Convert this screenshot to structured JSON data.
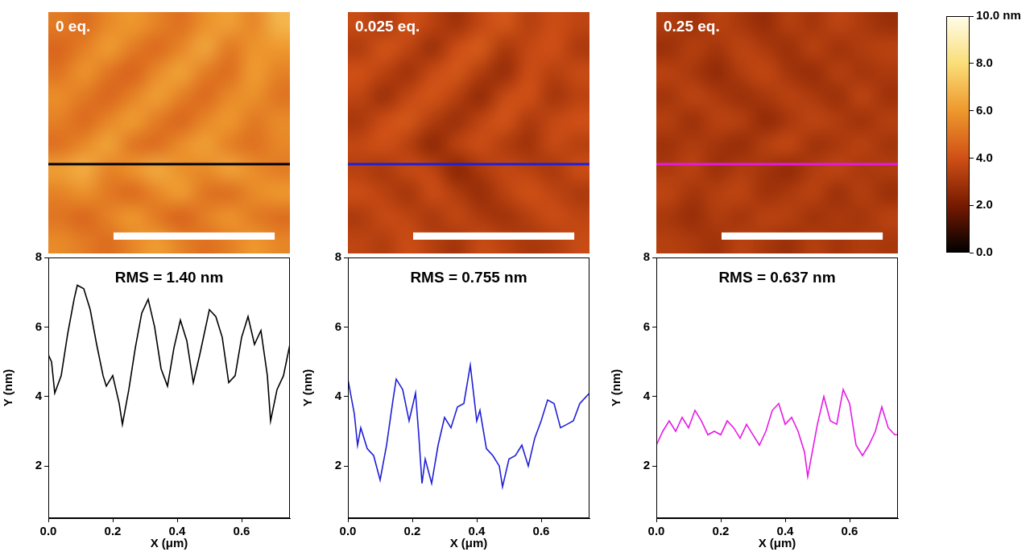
{
  "chart_data": [
    {
      "type": "heatmap",
      "title": "0 eq.",
      "color": "#000000",
      "tick_labels": false,
      "cells": [
        [
          5.2,
          4.8,
          5.6,
          6.0,
          5.4,
          4.9,
          5.8,
          6.2,
          5.5,
          6.8
        ],
        [
          4.6,
          5.3,
          6.1,
          5.2,
          4.7,
          5.5,
          6.4,
          5.1,
          5.9,
          6.0
        ],
        [
          5.0,
          5.9,
          5.0,
          4.5,
          5.6,
          6.3,
          5.2,
          4.8,
          6.1,
          5.4
        ],
        [
          5.7,
          5.1,
          4.6,
          5.4,
          6.2,
          5.3,
          4.7,
          5.6,
          5.8,
          5.0
        ],
        [
          5.3,
          4.7,
          5.5,
          6.1,
          5.2,
          4.6,
          5.5,
          6.0,
          5.1,
          5.6
        ],
        [
          4.9,
          5.6,
          6.3,
          5.0,
          4.8,
          5.7,
          6.2,
          5.3,
          4.9,
          5.5
        ],
        [
          6.2,
          6.6,
          5.4,
          5.9,
          6.5,
          5.8,
          5.6,
          6.3,
          5.7,
          5.2
        ],
        [
          5.4,
          5.8,
          5.1,
          4.7,
          5.5,
          6.1,
          5.0,
          4.8,
          5.6,
          6.0
        ],
        [
          5.0,
          4.6,
          5.4,
          6.0,
          5.1,
          4.5,
          5.3,
          5.9,
          5.2,
          4.8
        ],
        [
          5.6,
          5.2,
          4.8,
          5.5,
          6.1,
          5.4,
          4.9,
          5.3,
          6.0,
          5.5
        ]
      ]
    },
    {
      "type": "heatmap",
      "title": "0.025 eq.",
      "color": "#1f1fd6",
      "tick_labels": false,
      "cells": [
        [
          3.8,
          3.2,
          4.0,
          3.5,
          2.9,
          3.7,
          4.2,
          3.4,
          3.9,
          3.6
        ],
        [
          3.3,
          4.1,
          3.6,
          2.8,
          3.9,
          4.3,
          3.1,
          3.7,
          4.0,
          3.2
        ],
        [
          4.0,
          3.5,
          2.9,
          3.8,
          4.2,
          3.3,
          2.7,
          3.9,
          3.4,
          3.8
        ],
        [
          3.6,
          2.8,
          3.7,
          4.1,
          3.4,
          2.6,
          3.8,
          4.0,
          3.0,
          3.5
        ],
        [
          3.1,
          3.9,
          4.2,
          3.3,
          2.8,
          3.6,
          4.1,
          3.2,
          3.7,
          4.0
        ],
        [
          3.7,
          4.0,
          3.4,
          2.5,
          3.5,
          3.9,
          3.3,
          2.9,
          3.8,
          3.4
        ],
        [
          3.4,
          3.1,
          3.8,
          3.6,
          2.4,
          3.2,
          3.7,
          3.5,
          3.1,
          3.9
        ],
        [
          3.9,
          3.5,
          3.0,
          3.9,
          3.3,
          2.7,
          3.5,
          4.0,
          3.6,
          3.2
        ],
        [
          3.2,
          3.8,
          3.6,
          3.1,
          3.7,
          3.2,
          2.9,
          3.4,
          3.9,
          3.6
        ],
        [
          3.6,
          3.3,
          3.9,
          3.4,
          3.0,
          3.8,
          3.5,
          3.1,
          3.3,
          3.8
        ]
      ]
    },
    {
      "type": "heatmap",
      "title": "0.25 eq.",
      "color": "#e619e6",
      "tick_labels": false,
      "cells": [
        [
          3.3,
          2.9,
          3.5,
          3.1,
          2.7,
          3.4,
          3.0,
          3.6,
          3.2,
          2.8
        ],
        [
          2.8,
          3.4,
          3.0,
          3.6,
          3.2,
          2.8,
          3.5,
          2.9,
          3.3,
          3.5
        ],
        [
          3.5,
          3.1,
          2.6,
          3.3,
          3.7,
          3.0,
          2.7,
          3.4,
          3.0,
          3.2
        ],
        [
          3.0,
          3.6,
          3.2,
          2.8,
          3.1,
          3.5,
          3.2,
          2.8,
          3.6,
          2.9
        ],
        [
          3.4,
          2.8,
          3.5,
          3.4,
          2.6,
          3.1,
          3.6,
          3.3,
          2.9,
          3.4
        ],
        [
          2.9,
          3.3,
          3.0,
          2.7,
          3.4,
          3.7,
          2.9,
          3.1,
          3.5,
          3.0
        ],
        [
          3.2,
          3.5,
          2.8,
          3.3,
          3.0,
          2.6,
          3.3,
          3.6,
          3.1,
          3.3
        ],
        [
          3.6,
          3.0,
          3.4,
          3.6,
          2.9,
          3.2,
          3.5,
          2.8,
          3.4,
          2.8
        ],
        [
          3.1,
          2.7,
          3.3,
          3.0,
          3.5,
          3.4,
          2.9,
          3.2,
          3.0,
          3.5
        ],
        [
          3.4,
          3.2,
          2.9,
          3.5,
          3.1,
          2.8,
          3.4,
          3.0,
          3.3,
          3.1
        ]
      ]
    },
    {
      "type": "line",
      "title": "RMS = 1.40 nm",
      "x_label": "X (μm)",
      "y_label": "Y (nm)",
      "color": "#000000",
      "grid": false,
      "x": [
        0,
        0.01,
        0.02,
        0.04,
        0.06,
        0.08,
        0.09,
        0.11,
        0.13,
        0.15,
        0.17,
        0.18,
        0.2,
        0.22,
        0.23,
        0.25,
        0.27,
        0.29,
        0.31,
        0.33,
        0.35,
        0.37,
        0.39,
        0.41,
        0.43,
        0.45,
        0.47,
        0.5,
        0.52,
        0.54,
        0.56,
        0.58,
        0.6,
        0.62,
        0.64,
        0.66,
        0.68,
        0.69,
        0.71,
        0.73,
        0.75
      ],
      "values": [
        5.2,
        5.0,
        4.1,
        4.6,
        5.8,
        6.8,
        7.2,
        7.1,
        6.5,
        5.5,
        4.6,
        4.3,
        4.6,
        3.8,
        3.2,
        4.2,
        5.4,
        6.4,
        6.8,
        6.0,
        4.8,
        4.3,
        5.4,
        6.2,
        5.6,
        4.4,
        5.2,
        6.5,
        6.3,
        5.7,
        4.4,
        4.6,
        5.7,
        6.3,
        5.5,
        5.9,
        4.6,
        3.3,
        4.2,
        4.6,
        5.5
      ],
      "xlim": [
        0,
        0.75
      ],
      "xticks": [
        {
          "value": 0,
          "label": "0.0"
        },
        0.2,
        0.4,
        0.6
      ],
      "ylim": [
        0.5,
        8
      ],
      "yticks": [
        2,
        4,
        6,
        8
      ]
    },
    {
      "type": "line",
      "title": "RMS = 0.755 nm",
      "x_label": "X (μm)",
      "y_label": "Y (nm)",
      "color": "#1f1fd6",
      "grid": false,
      "x": [
        0,
        0.01,
        0.02,
        0.03,
        0.04,
        0.06,
        0.08,
        0.1,
        0.12,
        0.14,
        0.15,
        0.17,
        0.19,
        0.21,
        0.22,
        0.23,
        0.24,
        0.26,
        0.28,
        0.3,
        0.32,
        0.34,
        0.36,
        0.38,
        0.4,
        0.41,
        0.43,
        0.45,
        0.47,
        0.48,
        0.5,
        0.52,
        0.54,
        0.56,
        0.58,
        0.6,
        0.62,
        0.64,
        0.66,
        0.68,
        0.7,
        0.72,
        0.75
      ],
      "values": [
        4.5,
        4.0,
        3.5,
        2.6,
        3.1,
        2.5,
        2.3,
        1.6,
        2.6,
        3.9,
        4.5,
        4.2,
        3.3,
        4.1,
        2.9,
        1.5,
        2.2,
        1.5,
        2.6,
        3.4,
        3.1,
        3.7,
        3.8,
        4.9,
        3.3,
        3.6,
        2.5,
        2.3,
        2.0,
        1.4,
        2.2,
        2.3,
        2.6,
        2.0,
        2.8,
        3.3,
        3.9,
        3.8,
        3.1,
        3.2,
        3.3,
        3.8,
        4.1
      ],
      "xlim": [
        0,
        0.75
      ],
      "xticks": [
        {
          "value": 0,
          "label": "0.0"
        },
        0.2,
        0.4,
        0.6
      ],
      "ylim": [
        0.5,
        8
      ],
      "yticks": [
        2,
        4,
        6,
        8
      ]
    },
    {
      "type": "line",
      "title": "RMS = 0.637 nm",
      "x_label": "X (μm)",
      "y_label": "Y (nm)",
      "color": "#e619e6",
      "grid": false,
      "x": [
        0,
        0.02,
        0.04,
        0.06,
        0.08,
        0.1,
        0.12,
        0.14,
        0.16,
        0.18,
        0.2,
        0.22,
        0.24,
        0.26,
        0.28,
        0.3,
        0.32,
        0.34,
        0.36,
        0.38,
        0.4,
        0.42,
        0.44,
        0.46,
        0.47,
        0.48,
        0.5,
        0.52,
        0.54,
        0.56,
        0.58,
        0.6,
        0.62,
        0.64,
        0.66,
        0.68,
        0.7,
        0.72,
        0.74,
        0.75
      ],
      "values": [
        2.6,
        3.0,
        3.3,
        3.0,
        3.4,
        3.1,
        3.6,
        3.3,
        2.9,
        3.0,
        2.9,
        3.3,
        3.1,
        2.8,
        3.2,
        2.9,
        2.6,
        3.0,
        3.6,
        3.8,
        3.2,
        3.4,
        3.0,
        2.4,
        1.7,
        2.2,
        3.2,
        4.0,
        3.3,
        3.2,
        4.2,
        3.8,
        2.6,
        2.3,
        2.6,
        3.0,
        3.7,
        3.1,
        2.9,
        2.9
      ],
      "xlim": [
        0,
        0.75
      ],
      "xticks": [
        {
          "value": 0,
          "label": "0.0"
        },
        0.2,
        0.4,
        0.6
      ],
      "ylim": [
        0.5,
        8
      ],
      "yticks": [
        2,
        4,
        6,
        8
      ]
    }
  ],
  "color_bar": {
    "range": [
      0,
      10
    ],
    "ticks": [
      {
        "value": 0,
        "label": "0.0"
      },
      {
        "value": 2,
        "label": "2.0"
      },
      {
        "value": 4,
        "label": "4.0"
      },
      {
        "value": 6,
        "label": "6.0"
      },
      {
        "value": 8,
        "label": "8.0"
      },
      {
        "value": 10,
        "label": "10.0 nm"
      }
    ]
  }
}
